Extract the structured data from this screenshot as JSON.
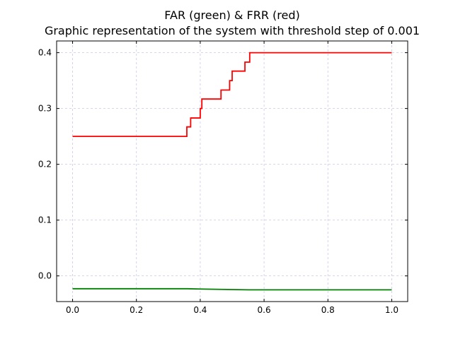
{
  "chart_data": {
    "type": "line",
    "title": "FAR (green) & FRR (red)",
    "subtitle": "Graphic representation of the system with threshold step of 0.001",
    "xlabel": "",
    "ylabel": "",
    "xlim": [
      -0.05,
      1.05
    ],
    "ylim": [
      -0.046,
      0.421
    ],
    "xticks": [
      0.0,
      0.2,
      0.4,
      0.6,
      0.8,
      1.0
    ],
    "xtick_labels": [
      "0.0",
      "0.2",
      "0.4",
      "0.6",
      "0.8",
      "1.0"
    ],
    "yticks": [
      0.0,
      0.1,
      0.2,
      0.3,
      0.4
    ],
    "ytick_labels": [
      "0.0",
      "0.1",
      "0.2",
      "0.3",
      "0.4"
    ],
    "grid": true,
    "legend": "none",
    "series": [
      {
        "color": "#ff0000",
        "line": "step",
        "x": [
          0.0,
          0.358,
          0.358,
          0.37,
          0.37,
          0.4,
          0.4,
          0.405,
          0.405,
          0.465,
          0.465,
          0.492,
          0.492,
          0.5,
          0.5,
          0.54,
          0.54,
          0.555,
          0.555,
          1.0
        ],
        "y": [
          0.25,
          0.25,
          0.267,
          0.267,
          0.283,
          0.283,
          0.3,
          0.3,
          0.317,
          0.317,
          0.333,
          0.333,
          0.35,
          0.35,
          0.367,
          0.367,
          0.383,
          0.383,
          0.4,
          0.4
        ]
      },
      {
        "color": "#008000",
        "line": "solid",
        "x": [
          0.0,
          0.36,
          0.4,
          0.45,
          0.55,
          1.0
        ],
        "y": [
          -0.023,
          -0.023,
          -0.0235,
          -0.024,
          -0.025,
          -0.025
        ]
      }
    ]
  }
}
